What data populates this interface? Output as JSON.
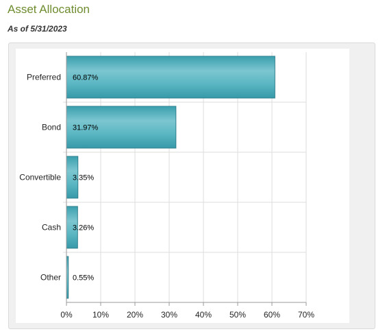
{
  "page": {
    "title": "Asset Allocation",
    "as_of": "As of 5/31/2023"
  },
  "chart_data": {
    "type": "bar",
    "orientation": "horizontal",
    "categories": [
      "Preferred",
      "Bond",
      "Convertible",
      "Cash",
      "Other"
    ],
    "values": [
      60.87,
      31.97,
      3.35,
      3.26,
      0.55
    ],
    "data_labels": [
      "60.87%",
      "31.97%",
      "3.35%",
      "3.26%",
      "0.55%"
    ],
    "x_ticks": [
      "0%",
      "10%",
      "20%",
      "30%",
      "40%",
      "50%",
      "60%",
      "70%"
    ],
    "xlim": [
      0,
      70
    ],
    "grid": true,
    "bar_color": "#45aebc",
    "title": "",
    "xlabel": "",
    "ylabel": ""
  }
}
